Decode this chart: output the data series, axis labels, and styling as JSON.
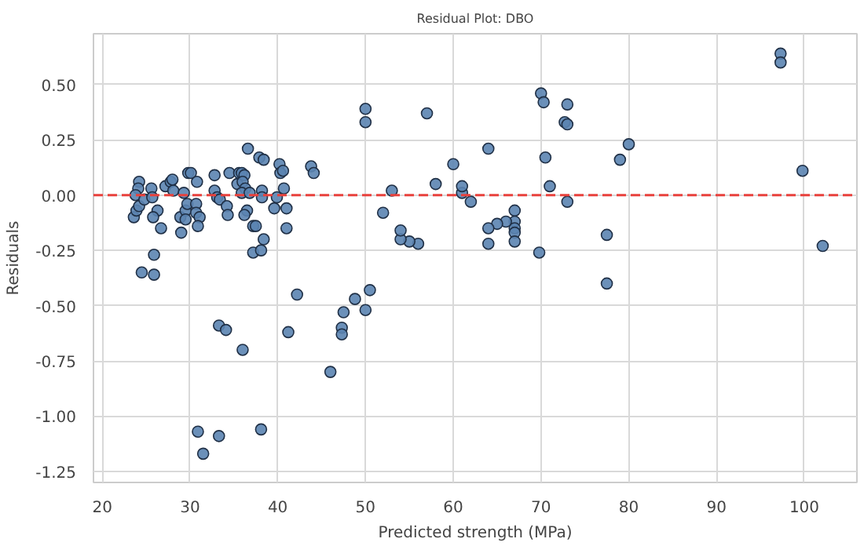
{
  "chart_data": {
    "type": "scatter",
    "title": "Residual Plot: DBO",
    "xlabel": "Predicted strength (MPa)",
    "ylabel": "Residuals",
    "xlim": [
      19,
      106
    ],
    "ylim": [
      -1.3,
      0.73
    ],
    "xticks": [
      20,
      30,
      40,
      50,
      60,
      70,
      80,
      90,
      100
    ],
    "yticks": [
      {
        "value": -1.25,
        "label": "-1.25"
      },
      {
        "value": -1,
        "label": "-1.00"
      },
      {
        "value": -0.75,
        "label": "-0.75"
      },
      {
        "value": -0.5,
        "label": "-0.50"
      },
      {
        "value": -0.25,
        "label": "-0.25"
      },
      {
        "value": 0,
        "label": "0.00"
      },
      {
        "value": 0.25,
        "label": "0.25"
      },
      {
        "value": 0.5,
        "label": "0.50"
      }
    ],
    "grid": true,
    "marker": "circle",
    "ref_lines": [
      {
        "axis": "y",
        "value": 0,
        "color": "#e8413c",
        "line_style": "dashed"
      }
    ],
    "series": [
      {
        "color": "#5b84b1",
        "x": [
          97.3,
          97.3,
          99.8,
          102.1,
          80,
          79,
          77.5,
          77.5,
          73,
          72.7,
          73,
          70,
          70.3,
          70.5,
          71,
          73,
          69.8,
          67,
          67,
          67,
          67,
          67,
          66,
          65,
          64,
          64,
          64,
          62,
          61,
          61,
          60,
          58,
          57,
          56,
          55,
          54,
          54,
          53,
          52,
          50,
          50,
          48.8,
          50.5,
          50,
          47.5,
          47.3,
          47.3,
          46,
          24.2,
          24.1,
          23.8,
          23.6,
          23.9,
          24.2,
          24.8,
          25.6,
          25.7,
          26.3,
          25.8,
          26.7,
          27.2,
          27.8,
          28.0,
          28.1,
          28.9,
          29.0,
          29.3,
          29.5,
          29.5,
          29.7,
          29.8,
          30.1,
          30.8,
          30.7,
          30.7,
          31.1,
          30.9,
          32.8,
          32.8,
          33.1,
          33.4,
          34.2,
          34.3,
          34.5,
          35.4,
          35.6,
          35.9,
          36.2,
          36.0,
          36.3,
          35.9,
          36.6,
          36.5,
          36.2,
          36.8,
          37.2,
          37.5,
          37.2,
          38.1,
          38.4,
          37.9,
          38.4,
          38.2,
          38.2,
          39.6,
          39.9,
          40.2,
          40.3,
          40.6,
          40.7,
          41.0,
          41.0,
          43.8,
          44.1,
          25.9,
          24.5,
          25.9,
          42.2,
          33.3,
          34.1,
          36.0,
          41.2,
          30.9,
          33.3,
          31.5,
          38.1
        ],
        "values": [
          0.64,
          0.6,
          0.11,
          -0.23,
          0.23,
          0.16,
          -0.18,
          -0.4,
          0.41,
          0.33,
          0.32,
          0.46,
          0.42,
          0.17,
          0.04,
          -0.03,
          -0.26,
          -0.07,
          -0.12,
          -0.15,
          -0.17,
          -0.21,
          -0.12,
          -0.13,
          -0.15,
          -0.22,
          0.21,
          -0.03,
          0.01,
          0.04,
          0.14,
          0.05,
          0.37,
          -0.22,
          -0.21,
          -0.2,
          -0.16,
          0.02,
          -0.08,
          0.39,
          0.33,
          -0.47,
          -0.43,
          -0.52,
          -0.53,
          -0.6,
          -0.63,
          -0.8,
          0.06,
          0.03,
          0.0,
          -0.1,
          -0.07,
          -0.05,
          -0.02,
          0.03,
          -0.01,
          -0.07,
          -0.1,
          -0.15,
          0.04,
          0.06,
          0.07,
          0.02,
          -0.1,
          -0.17,
          0.01,
          -0.07,
          -0.11,
          -0.04,
          0.1,
          0.1,
          0.06,
          -0.04,
          -0.08,
          -0.1,
          -0.14,
          0.09,
          0.02,
          -0.01,
          -0.02,
          -0.05,
          -0.09,
          0.1,
          0.05,
          0.1,
          0.1,
          0.09,
          0.06,
          0.03,
          0.01,
          0.21,
          -0.07,
          -0.09,
          0.01,
          -0.14,
          -0.14,
          -0.26,
          -0.25,
          -0.2,
          0.17,
          0.16,
          0.02,
          -0.01,
          -0.06,
          -0.01,
          0.14,
          0.1,
          0.11,
          0.03,
          -0.06,
          -0.15,
          0.13,
          0.1,
          -0.27,
          -0.35,
          -0.36,
          -0.45,
          -0.59,
          -0.61,
          -0.7,
          -0.62,
          -1.07,
          -1.09,
          -1.17,
          -1.06
        ]
      }
    ]
  }
}
